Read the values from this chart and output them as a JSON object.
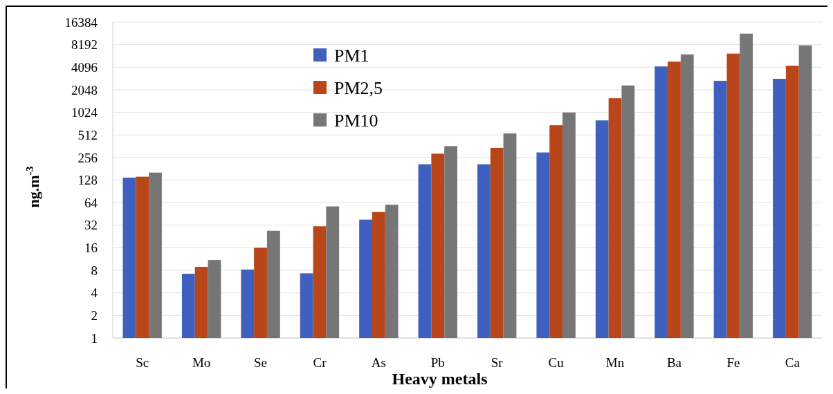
{
  "chart_data": {
    "type": "bar",
    "xlabel": "Heavy metals",
    "ylabel": "ng.m$^{-3}$",
    "categories": [
      "Sc",
      "Mo",
      "Se",
      "Cr",
      "As",
      "Pb",
      "Sr",
      "Cu",
      "Mn",
      "Ba",
      "Fe",
      "Ca"
    ],
    "series": [
      {
        "name": "PM1",
        "color": "#4060c0",
        "values": [
          138,
          7.2,
          8.2,
          7.3,
          38,
          208,
          208,
          299,
          800,
          4200,
          2700,
          2870
        ]
      },
      {
        "name": "PM2,5",
        "color": "#b84618",
        "values": [
          142,
          8.9,
          16,
          31,
          48,
          288,
          344,
          690,
          1580,
          4870,
          6220,
          4300
        ]
      },
      {
        "name": "PM10",
        "color": "#767676",
        "values": [
          161,
          11,
          27,
          57,
          60,
          364,
          536,
          1020,
          2340,
          6080,
          11500,
          8030
        ]
      }
    ],
    "log": "y",
    "ylim": [
      1,
      16384
    ],
    "yticks": [
      1,
      2,
      4,
      8,
      16,
      32,
      64,
      128,
      256,
      512,
      1024,
      2048,
      4096,
      8192,
      16384
    ],
    "grid": "y",
    "legend": "top"
  }
}
